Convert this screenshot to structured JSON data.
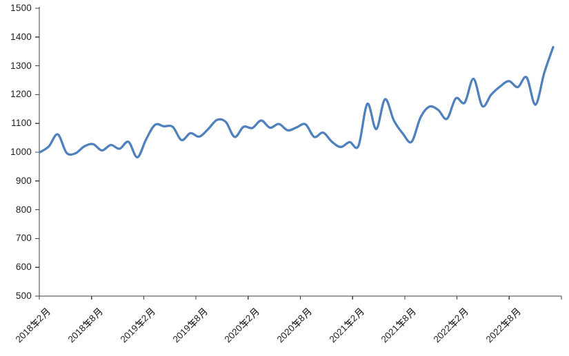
{
  "chart_data": {
    "type": "line",
    "title": "",
    "xlabel": "",
    "ylabel": "",
    "legend": false,
    "grid": false,
    "smooth": true,
    "markers": false,
    "line_color": "#4f81bd",
    "axis_color": "#3f3f3f",
    "label_color": "#1f1f1f",
    "background": "#ffffff",
    "ylim": [
      500,
      1500
    ],
    "y_tick_step": 100,
    "y_tick_labels": [
      "500",
      "600",
      "700",
      "800",
      "900",
      "1000",
      "1100",
      "1200",
      "1300",
      "1400",
      "1500"
    ],
    "x_tick_labels": [
      "2018年2月",
      "2018年8月",
      "2019年2月",
      "2019年8月",
      "2020年2月",
      "2020年8月",
      "2021年2月",
      "2021年8月",
      "2022年2月",
      "2022年8月"
    ],
    "categories": [
      "2018-02",
      "2018-03",
      "2018-04",
      "2018-05",
      "2018-06",
      "2018-07",
      "2018-08",
      "2018-09",
      "2018-10",
      "2018-11",
      "2018-12",
      "2019-01",
      "2019-02",
      "2019-03",
      "2019-04",
      "2019-05",
      "2019-06",
      "2019-07",
      "2019-08",
      "2019-09",
      "2019-10",
      "2019-11",
      "2019-12",
      "2020-01",
      "2020-02",
      "2020-03",
      "2020-04",
      "2020-05",
      "2020-06",
      "2020-07",
      "2020-08",
      "2020-09",
      "2020-10",
      "2020-11",
      "2020-12",
      "2021-01",
      "2021-02",
      "2021-03",
      "2021-04",
      "2021-05",
      "2021-06",
      "2021-07",
      "2021-08",
      "2021-09",
      "2021-10",
      "2021-11",
      "2021-12",
      "2022-01",
      "2022-02",
      "2022-03",
      "2022-04",
      "2022-05",
      "2022-06",
      "2022-07",
      "2022-08",
      "2022-09",
      "2022-10",
      "2022-11",
      "2022-12"
    ],
    "values": [
      1000,
      1020,
      1062,
      998,
      996,
      1020,
      1028,
      1006,
      1025,
      1012,
      1036,
      982,
      1045,
      1095,
      1090,
      1088,
      1042,
      1066,
      1054,
      1080,
      1112,
      1105,
      1053,
      1088,
      1084,
      1110,
      1085,
      1098,
      1076,
      1086,
      1097,
      1053,
      1068,
      1036,
      1018,
      1035,
      1022,
      1168,
      1080,
      1184,
      1110,
      1065,
      1036,
      1120,
      1158,
      1147,
      1116,
      1187,
      1172,
      1255,
      1160,
      1200,
      1228,
      1247,
      1226,
      1260,
      1165,
      1276,
      1365
    ]
  },
  "glyphs": {
    "年": "g-nian",
    "月": "g-yue"
  }
}
